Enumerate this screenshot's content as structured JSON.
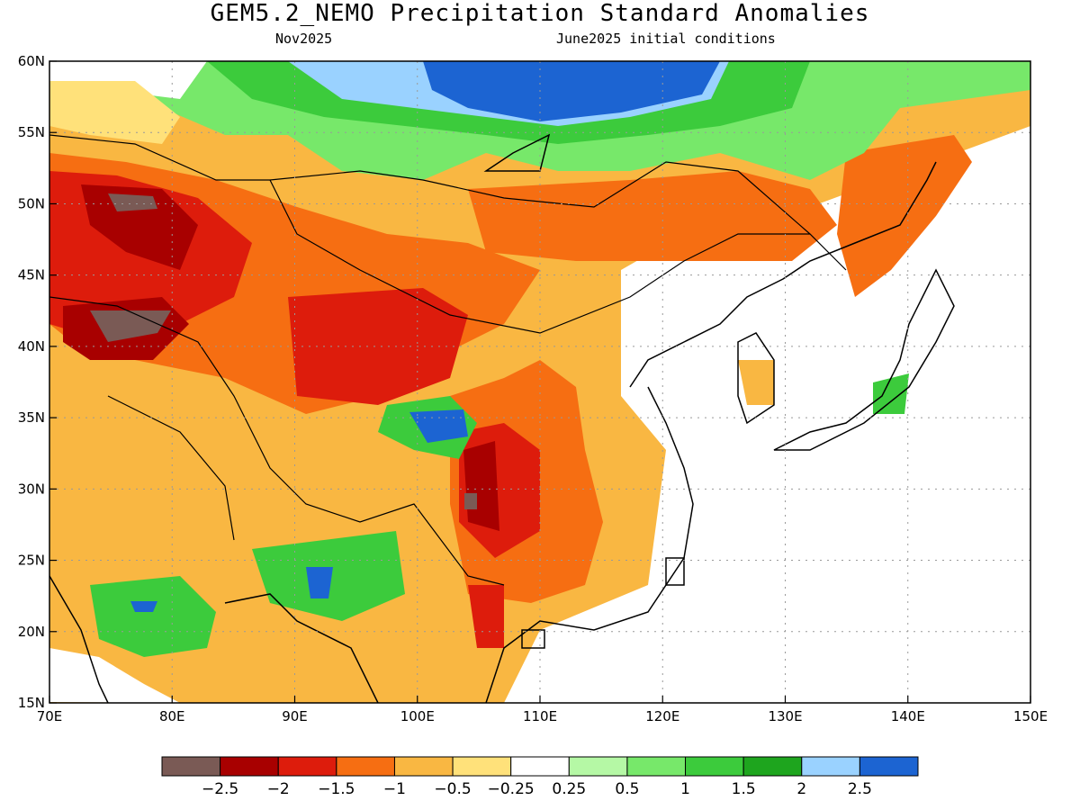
{
  "title": "GEM5.2_NEMO Precipitation Standard Anomalies",
  "subtitle_left": "Nov2025",
  "subtitle_right": "June2025 initial conditions",
  "axes": {
    "lon_ticks": [
      "70E",
      "80E",
      "90E",
      "100E",
      "110E",
      "120E",
      "130E",
      "140E",
      "150E"
    ],
    "lat_ticks": [
      "15N",
      "20N",
      "25N",
      "30N",
      "35N",
      "40N",
      "45N",
      "50N",
      "55N",
      "60N"
    ],
    "lon_range": [
      70,
      150
    ],
    "lat_range": [
      15,
      60
    ],
    "grid": "dotted"
  },
  "colorbar": {
    "colors": [
      "#7a5a55",
      "#a80000",
      "#dd1c0c",
      "#f66e12",
      "#f9b742",
      "#ffe17a",
      "#ffffff",
      "#b5f8a5",
      "#77e86a",
      "#3ccb3c",
      "#1ea51e",
      "#9ad2ff",
      "#1c64d2"
    ],
    "labels": [
      "−2.5",
      "−2",
      "−1.5",
      "−1",
      "−0.5",
      "−0.25",
      "0.25",
      "0.5",
      "1",
      "1.5",
      "2",
      "2.5"
    ]
  }
}
